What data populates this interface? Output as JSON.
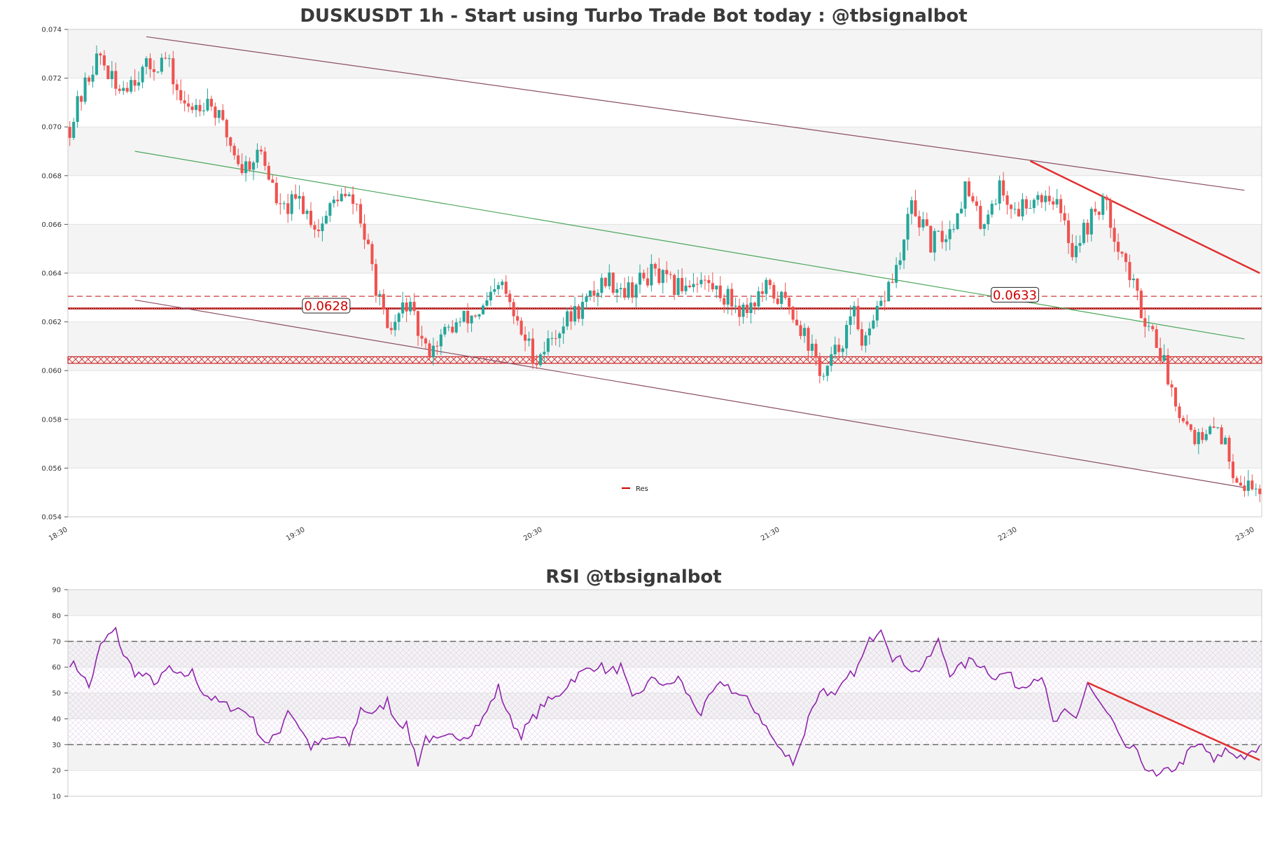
{
  "chart_data": [
    {
      "type": "candlestick",
      "title": "DUSKUSDT 1h - Start using Turbo Trade Bot today : @tbsignalbot",
      "x_ticks": [
        "18:30",
        "19:30",
        "20:30",
        "21:30",
        "22:30",
        "23:30"
      ],
      "y_ticks": [
        "0.074",
        "0.072",
        "0.070",
        "0.068",
        "0.066",
        "0.064",
        "0.062",
        "0.060",
        "0.058",
        "0.056",
        "0.054"
      ],
      "ylim": [
        0.054,
        0.074
      ],
      "close_path": [
        [
          0,
          0.07
        ],
        [
          6,
          0.0725
        ],
        [
          8,
          0.0729
        ],
        [
          12,
          0.0715
        ],
        [
          18,
          0.0722
        ],
        [
          25,
          0.0728
        ],
        [
          30,
          0.0707
        ],
        [
          36,
          0.0712
        ],
        [
          40,
          0.07
        ],
        [
          45,
          0.0683
        ],
        [
          50,
          0.069
        ],
        [
          55,
          0.0665
        ],
        [
          60,
          0.067
        ],
        [
          65,
          0.0658
        ],
        [
          70,
          0.0672
        ],
        [
          75,
          0.0668
        ],
        [
          80,
          0.0635
        ],
        [
          83,
          0.0614
        ],
        [
          88,
          0.0628
        ],
        [
          93,
          0.0608
        ],
        [
          100,
          0.0618
        ],
        [
          108,
          0.0625
        ],
        [
          113,
          0.0635
        ],
        [
          117,
          0.0618
        ],
        [
          122,
          0.0605
        ],
        [
          128,
          0.0618
        ],
        [
          135,
          0.0628
        ],
        [
          140,
          0.0638
        ],
        [
          146,
          0.0633
        ],
        [
          152,
          0.064
        ],
        [
          158,
          0.0634
        ],
        [
          164,
          0.0638
        ],
        [
          170,
          0.0632
        ],
        [
          176,
          0.0625
        ],
        [
          182,
          0.0633
        ],
        [
          188,
          0.0627
        ],
        [
          192,
          0.0615
        ],
        [
          197,
          0.0597
        ],
        [
          200,
          0.0607
        ],
        [
          205,
          0.0623
        ],
        [
          208,
          0.061
        ],
        [
          214,
          0.0635
        ],
        [
          217,
          0.0645
        ],
        [
          220,
          0.0668
        ],
        [
          225,
          0.0652
        ],
        [
          230,
          0.0657
        ],
        [
          234,
          0.0675
        ],
        [
          238,
          0.066
        ],
        [
          243,
          0.0675
        ],
        [
          247,
          0.0665
        ],
        [
          252,
          0.0672
        ],
        [
          257,
          0.0672
        ],
        [
          262,
          0.065
        ],
        [
          266,
          0.066
        ],
        [
          270,
          0.067
        ],
        [
          275,
          0.0648
        ],
        [
          280,
          0.0625
        ],
        [
          284,
          0.0613
        ],
        [
          288,
          0.0592
        ],
        [
          292,
          0.0578
        ],
        [
          296,
          0.057
        ],
        [
          300,
          0.0578
        ],
        [
          304,
          0.056
        ],
        [
          307,
          0.0553
        ],
        [
          310,
          0.0552
        ]
      ],
      "annotations": [
        {
          "text": "0.0628",
          "x": 67,
          "y": 0.06265
        },
        {
          "text": "0.0633",
          "x": 247,
          "y": 0.0631
        }
      ],
      "hlines": [
        {
          "name": "resistance-dashed",
          "y": 0.06305,
          "style": "dashed",
          "color": "#cc2222"
        },
        {
          "name": "resistance-solid",
          "y": 0.06255,
          "style": "solid",
          "color": "#aa0000"
        }
      ],
      "zone": {
        "y_top": 0.06057,
        "y_bottom": 0.0603,
        "color": "#cc2222"
      },
      "trendlines": [
        {
          "name": "channel-top",
          "color": "#8b4f67",
          "width": 1.2,
          "points": [
            [
              20,
              0.0737
            ],
            [
              307,
              0.0674
            ]
          ]
        },
        {
          "name": "channel-middle",
          "color": "#4ca65a",
          "width": 1.2,
          "points": [
            [
              17,
              0.069
            ],
            [
              307,
              0.0613
            ]
          ]
        },
        {
          "name": "channel-bottom",
          "color": "#8b4f67",
          "width": 1.2,
          "points": [
            [
              17,
              0.0629
            ],
            [
              307,
              0.0552
            ]
          ]
        },
        {
          "name": "resistance-trend",
          "color": "#e03030",
          "width": 2.5,
          "points": [
            [
              251,
              0.0686
            ],
            [
              311,
              0.064
            ]
          ]
        }
      ],
      "legend": {
        "label": "Res",
        "color": "#cc0000",
        "position": "bottom-center"
      },
      "up_color": "#26a69a",
      "down_color": "#ef5350"
    },
    {
      "type": "line",
      "title": "RSI @tbsignalbot",
      "y_ticks": [
        "90",
        "80",
        "70",
        "60",
        "50",
        "40",
        "30",
        "20",
        "10"
      ],
      "ylim": [
        10,
        90
      ],
      "overbought": 70,
      "oversold": 30,
      "line_color": "#8e24aa",
      "rsi_path": [
        [
          0,
          62
        ],
        [
          3,
          58
        ],
        [
          5,
          52
        ],
        [
          8,
          68
        ],
        [
          10,
          72
        ],
        [
          12,
          74
        ],
        [
          14,
          65
        ],
        [
          17,
          58
        ],
        [
          20,
          56
        ],
        [
          23,
          54
        ],
        [
          26,
          60
        ],
        [
          28,
          56
        ],
        [
          32,
          58
        ],
        [
          35,
          50
        ],
        [
          38,
          47
        ],
        [
          41,
          45
        ],
        [
          44,
          44
        ],
        [
          47,
          42
        ],
        [
          50,
          33
        ],
        [
          52,
          30
        ],
        [
          55,
          36
        ],
        [
          57,
          44
        ],
        [
          60,
          37
        ],
        [
          63,
          29
        ],
        [
          66,
          31
        ],
        [
          70,
          33
        ],
        [
          73,
          30
        ],
        [
          76,
          44
        ],
        [
          80,
          42
        ],
        [
          83,
          47
        ],
        [
          85,
          40
        ],
        [
          88,
          37
        ],
        [
          91,
          23
        ],
        [
          93,
          33
        ],
        [
          96,
          31
        ],
        [
          100,
          33
        ],
        [
          104,
          34
        ],
        [
          108,
          40
        ],
        [
          112,
          52
        ],
        [
          115,
          40
        ],
        [
          118,
          34
        ],
        [
          121,
          40
        ],
        [
          124,
          46
        ],
        [
          127,
          48
        ],
        [
          131,
          55
        ],
        [
          134,
          58
        ],
        [
          138,
          61
        ],
        [
          141,
          58
        ],
        [
          144,
          60
        ],
        [
          147,
          47
        ],
        [
          150,
          52
        ],
        [
          153,
          56
        ],
        [
          156,
          52
        ],
        [
          159,
          56
        ],
        [
          162,
          48
        ],
        [
          165,
          42
        ],
        [
          168,
          50
        ],
        [
          171,
          54
        ],
        [
          174,
          50
        ],
        [
          177,
          47
        ],
        [
          180,
          42
        ],
        [
          183,
          34
        ],
        [
          186,
          27
        ],
        [
          189,
          24
        ],
        [
          191,
          30
        ],
        [
          194,
          45
        ],
        [
          197,
          52
        ],
        [
          200,
          48
        ],
        [
          203,
          55
        ],
        [
          206,
          60
        ],
        [
          209,
          70
        ],
        [
          212,
          76
        ],
        [
          215,
          64
        ],
        [
          218,
          62
        ],
        [
          221,
          58
        ],
        [
          224,
          62
        ],
        [
          227,
          70
        ],
        [
          230,
          58
        ],
        [
          233,
          60
        ],
        [
          236,
          63
        ],
        [
          239,
          60
        ],
        [
          242,
          56
        ],
        [
          245,
          58
        ],
        [
          248,
          52
        ],
        [
          251,
          55
        ],
        [
          254,
          57
        ],
        [
          257,
          38
        ],
        [
          260,
          42
        ],
        [
          263,
          40
        ],
        [
          266,
          54
        ],
        [
          269,
          46
        ],
        [
          272,
          40
        ],
        [
          275,
          30
        ],
        [
          278,
          28
        ],
        [
          281,
          22
        ],
        [
          284,
          17
        ],
        [
          287,
          20
        ],
        [
          290,
          22
        ],
        [
          293,
          28
        ],
        [
          296,
          30
        ],
        [
          299,
          23
        ],
        [
          302,
          28
        ],
        [
          305,
          26
        ],
        [
          308,
          25
        ],
        [
          311,
          29
        ]
      ],
      "trendline": {
        "color": "#e03030",
        "points": [
          [
            266,
            54
          ],
          [
            311,
            24
          ]
        ]
      }
    }
  ]
}
